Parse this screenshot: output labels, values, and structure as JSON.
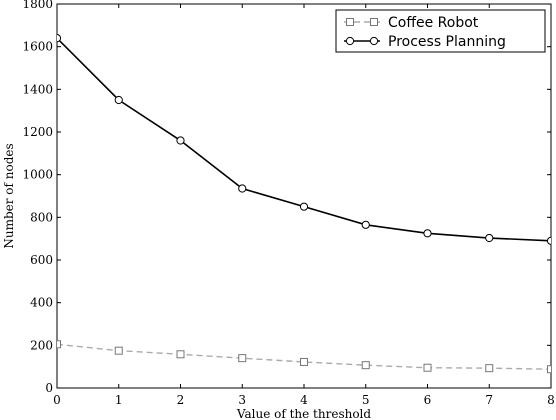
{
  "chart_data": {
    "type": "line",
    "xlabel": "Value of the threshold",
    "ylabel": "Number of nodes",
    "xlim": [
      0,
      8
    ],
    "ylim": [
      0,
      1800
    ],
    "xticks": [
      "0",
      "1",
      "2",
      "3",
      "4",
      "5",
      "6",
      "7",
      "8"
    ],
    "yticks": [
      "0",
      "200",
      "400",
      "600",
      "800",
      "1000",
      "1200",
      "1400",
      "1600",
      "1800"
    ],
    "grid": false,
    "legend_position": "top-right",
    "x": [
      0,
      1,
      2,
      3,
      4,
      5,
      6,
      7,
      8
    ],
    "series": [
      {
        "name": "Coffee Robot",
        "values": [
          205,
          175,
          158,
          140,
          122,
          107,
          95,
          93,
          88
        ],
        "marker": "square",
        "line_style": "dashed",
        "color": "#aaaaaa"
      },
      {
        "name": "Process Planning",
        "values": [
          1640,
          1350,
          1160,
          935,
          850,
          765,
          725,
          703,
          690
        ],
        "marker": "circle",
        "line_style": "solid",
        "color": "#000000"
      }
    ]
  }
}
